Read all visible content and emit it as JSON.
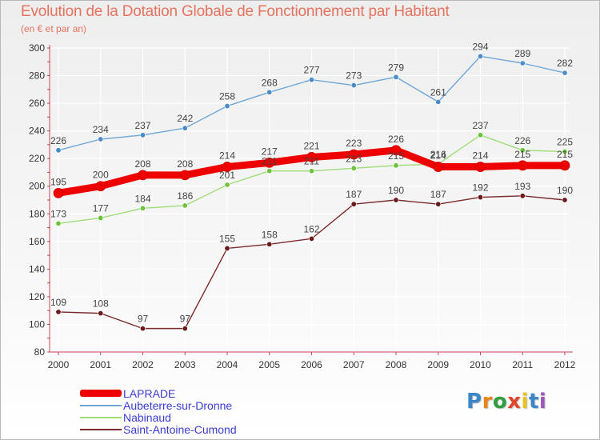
{
  "header": {
    "title": "Evolution de la Dotation Globale de Fonctionnement par Habitant",
    "subtitle": "(en € et par an)"
  },
  "logo": {
    "text": "Proxiti",
    "letter_colors": [
      "#3a86c9",
      "#e8861c",
      "#2f9e3e",
      "#e2452b",
      "#e8c51c",
      "#3a86c9",
      "#9b59b6"
    ]
  },
  "colors": {
    "axis": "#c6495a",
    "grid": "#ffffff",
    "label": "#3b3bd1",
    "value_label": "#444444"
  },
  "chart_data": {
    "type": "line",
    "title": "Evolution de la Dotation Globale de Fonctionnement par Habitant",
    "subtitle": "(en € et par an)",
    "xlabel": "",
    "ylabel": "",
    "x": [
      "2000",
      "2001",
      "2002",
      "2003",
      "2004",
      "2005",
      "2006",
      "2007",
      "2008",
      "2009",
      "2010",
      "2011",
      "2012"
    ],
    "ylim": [
      80,
      300
    ],
    "yticks": [
      80,
      100,
      120,
      140,
      160,
      180,
      200,
      220,
      240,
      260,
      280,
      300
    ],
    "grid": true,
    "legend_position": "bottom-left",
    "series": [
      {
        "name": "LAPRADE",
        "color": "#ee0000",
        "emphasis": "thick",
        "values": [
          195,
          200,
          208,
          208,
          214,
          217,
          221,
          223,
          226,
          214,
          214,
          215,
          215
        ],
        "labels": [
          "195",
          "200",
          "208",
          "208",
          "214",
          "217",
          "221",
          "223",
          "226",
          "214",
          "214",
          "215",
          "215"
        ]
      },
      {
        "name": "Aubeterre-sur-Dronne",
        "color": "#6fa6d6",
        "marker_color": "#4a8cc8",
        "values": [
          226,
          234,
          237,
          242,
          258,
          268,
          277,
          273,
          279,
          261,
          294,
          289,
          282
        ],
        "labels": [
          "226",
          "234",
          "237",
          "242",
          "258",
          "268",
          "277",
          "273",
          "279",
          "261",
          "294",
          "289",
          "282"
        ]
      },
      {
        "name": "Nabinaud",
        "color": "#9fdc78",
        "marker_color": "#6cc43c",
        "values": [
          173,
          177,
          184,
          186,
          201,
          211,
          211,
          213,
          215,
          216,
          237,
          226,
          225
        ],
        "labels": [
          "173",
          "177",
          "184",
          "186",
          "201",
          "211",
          "211",
          "213",
          "215",
          "216",
          "237",
          "226",
          "225"
        ]
      },
      {
        "name": "Saint-Antoine-Cumond",
        "color": "#7a2a2a",
        "marker_color": "#6a1a1a",
        "values": [
          109,
          108,
          97,
          97,
          155,
          158,
          162,
          187,
          190,
          187,
          192,
          193,
          190
        ],
        "labels": [
          "109",
          "108",
          "97",
          "97",
          "155",
          "158",
          "162",
          "187",
          "190",
          "187",
          "192",
          "193",
          "190"
        ]
      }
    ]
  }
}
